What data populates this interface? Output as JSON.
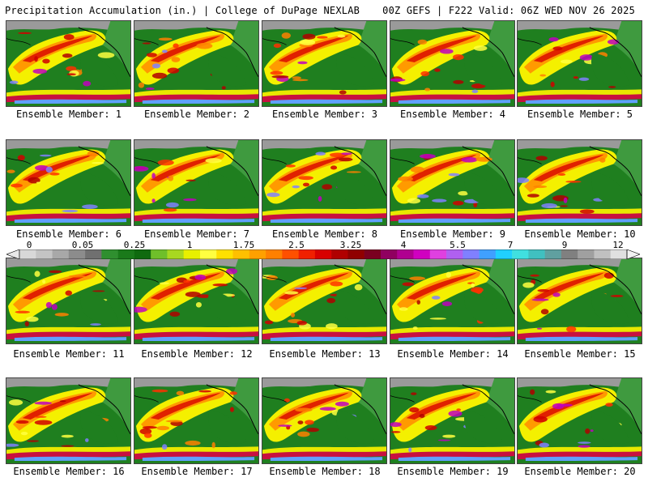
{
  "header": {
    "left_title": "Precipitation Accumulation (in.) | College of DuPage NEXLAB",
    "right_title": "00Z GEFS | F222 Valid: 06Z WED NOV 26 2025"
  },
  "members": [
    {
      "label": "Ensemble Member: 1"
    },
    {
      "label": "Ensemble Member: 2"
    },
    {
      "label": "Ensemble Member: 3"
    },
    {
      "label": "Ensemble Member: 4"
    },
    {
      "label": "Ensemble Member: 5"
    },
    {
      "label": "Ensemble Member: 6"
    },
    {
      "label": "Ensemble Member: 7"
    },
    {
      "label": "Ensemble Member: 8"
    },
    {
      "label": "Ensemble Member: 9"
    },
    {
      "label": "Ensemble Member: 10"
    },
    {
      "label": "Ensemble Member: 11"
    },
    {
      "label": "Ensemble Member: 12"
    },
    {
      "label": "Ensemble Member: 13"
    },
    {
      "label": "Ensemble Member: 14"
    },
    {
      "label": "Ensemble Member: 15"
    },
    {
      "label": "Ensemble Member: 16"
    },
    {
      "label": "Ensemble Member: 17"
    },
    {
      "label": "Ensemble Member: 18"
    },
    {
      "label": "Ensemble Member: 19"
    },
    {
      "label": "Ensemble Member: 20"
    }
  ],
  "colorbar": {
    "tick_labels": [
      "0",
      "0.05",
      "0.25",
      "1",
      "1.75",
      "2.5",
      "3.25",
      "4",
      "5.5",
      "7",
      "9",
      "12"
    ],
    "colors": [
      "#d8d8d8",
      "#c4c4c4",
      "#a8a8a8",
      "#8c8c8c",
      "#707070",
      "#2f8f2f",
      "#1a7a1a",
      "#0f6a0f",
      "#6fbf2a",
      "#a8d820",
      "#e8f000",
      "#ffff40",
      "#ffe000",
      "#ffc000",
      "#ffa000",
      "#ff8000",
      "#ff5000",
      "#f02000",
      "#d80000",
      "#b00000",
      "#900000",
      "#7a0020",
      "#900060",
      "#b00090",
      "#d000c0",
      "#e040e0",
      "#b060f0",
      "#8080ff",
      "#40a0ff",
      "#20d0ff",
      "#40e0e0",
      "#40c0c0",
      "#60a0a0",
      "#808080",
      "#a0a0a0",
      "#c0c0c0",
      "#e0e0e0"
    ]
  }
}
